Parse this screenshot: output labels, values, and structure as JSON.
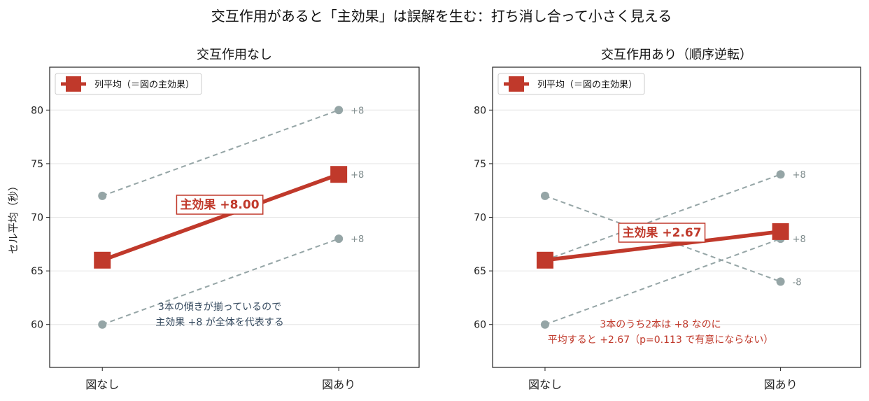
{
  "suptitle": "交互作用があると「主効果」は誤解を生む：打ち消し合って小さく見える",
  "colors": {
    "mean": "#c0392b",
    "cell": "#95a5a6",
    "grid": "#e6e6e6",
    "note_dark": "#34495e"
  },
  "chart_data": [
    {
      "type": "line",
      "title": "交互作用なし",
      "ylabel": "セル平均（秒）",
      "categories": [
        "図なし",
        "図あり"
      ],
      "ylim": [
        56,
        84
      ],
      "yticks": [
        60,
        65,
        70,
        75,
        80
      ],
      "grid": "horizontal",
      "legend": {
        "label": "列平均（＝図の主効果）",
        "placement": "upper-left"
      },
      "cells": [
        {
          "values": [
            72,
            80
          ],
          "diff_label": "+8"
        },
        {
          "values": [
            60,
            68
          ],
          "diff_label": "+8"
        }
      ],
      "mean": {
        "values": [
          66,
          74
        ],
        "diff_label": "+8"
      },
      "effect_label": "主効果 +8.00",
      "note": [
        "3本の傾きが揃っているので",
        "主効果 +8 が全体を代表する"
      ]
    },
    {
      "type": "line",
      "title": "交互作用あり（順序逆転）",
      "ylabel": "",
      "categories": [
        "図なし",
        "図あり"
      ],
      "ylim": [
        56,
        84
      ],
      "yticks": [
        60,
        65,
        70,
        75,
        80
      ],
      "grid": "horizontal",
      "legend": {
        "label": "列平均（＝図の主効果）",
        "placement": "upper-left"
      },
      "cells": [
        {
          "values": [
            72,
            64
          ],
          "diff_label": "-8"
        },
        {
          "values": [
            66,
            74
          ],
          "diff_label": "+8"
        },
        {
          "values": [
            60,
            68
          ],
          "diff_label": "+8"
        }
      ],
      "mean": {
        "values": [
          66,
          68.67
        ],
        "diff_label": ""
      },
      "effect_label": "主効果 +2.67",
      "note": [
        "3本のうち2本は +8 なのに",
        "平均すると +2.67（p=0.113 で有意にならない）"
      ]
    }
  ]
}
